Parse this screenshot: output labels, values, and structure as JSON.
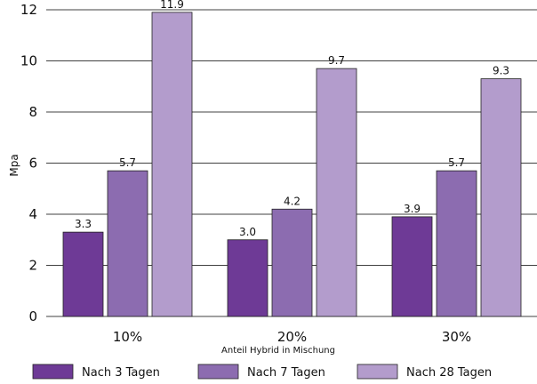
{
  "chart_data": {
    "type": "bar",
    "categories": [
      "10%",
      "20%",
      "30%"
    ],
    "series": [
      {
        "name": "Nach 3 Tagen",
        "values": [
          3.3,
          3.0,
          3.9
        ],
        "labels": [
          "3.3",
          "3.0",
          "3.9"
        ],
        "color": "#6e3a96"
      },
      {
        "name": "Nach 7 Tagen",
        "values": [
          5.7,
          4.2,
          5.7
        ],
        "labels": [
          "5.7",
          "4.2",
          "5.7"
        ],
        "color": "#8c6cb0"
      },
      {
        "name": "Nach 28 Tagen",
        "values": [
          11.9,
          9.7,
          9.3
        ],
        "labels": [
          "11.9",
          "9.7",
          "9.3"
        ],
        "color": "#b39ccc"
      }
    ],
    "yticks": [
      "0",
      "2",
      "4",
      "6",
      "8",
      "10",
      "12"
    ],
    "ylim": [
      0,
      12
    ],
    "xlabel": "Anteil Hybrid in Mischung",
    "ylabel": "Mpa",
    "grid": true,
    "legend_position": "bottom"
  }
}
